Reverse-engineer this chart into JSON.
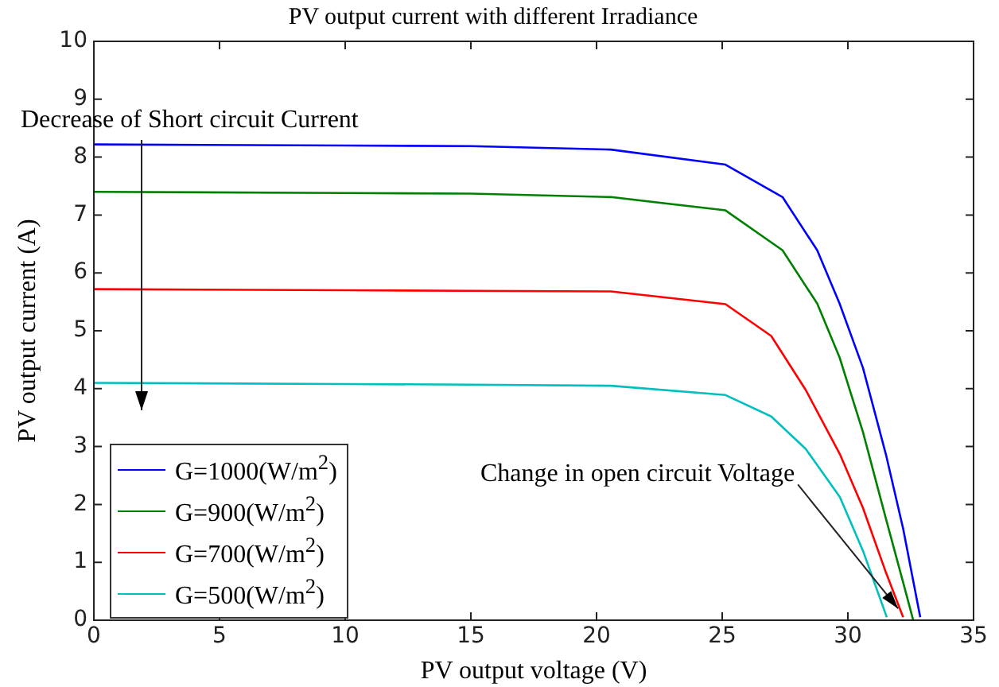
{
  "chart_data": {
    "type": "line",
    "title": "PV output current with different Irradiance",
    "xlabel": "PV output voltage (V)",
    "ylabel": "PV output current (A)",
    "xlim": [
      0,
      35
    ],
    "xticks": [
      0,
      5,
      10,
      15,
      20,
      25,
      30,
      35
    ],
    "ylim": [
      0,
      10
    ],
    "yticks": [
      0,
      1,
      2,
      3,
      4,
      5,
      6,
      7,
      8,
      9,
      10
    ],
    "grid": false,
    "legend": "bottom left",
    "marker": "none",
    "line_style": "solid",
    "series": [
      {
        "name": "G=1000(W/m$^{2}$)",
        "color": "#0000ff",
        "x": [
          0,
          10,
          15,
          20.57,
          25.13,
          27.4,
          28.78,
          29.67,
          30.6,
          31.51,
          32.2,
          32.88
        ],
        "values": [
          8.22,
          8.2,
          8.19,
          8.13,
          7.87,
          7.31,
          6.39,
          5.47,
          4.36,
          2.87,
          1.58,
          0.05
        ]
      },
      {
        "name": "G=900(W/m$^{2}$)",
        "color": "#008000",
        "x": [
          0,
          10,
          15,
          20.57,
          25.13,
          27.4,
          28.78,
          29.67,
          30.6,
          31.51,
          32.2,
          32.6
        ],
        "values": [
          7.4,
          7.38,
          7.37,
          7.31,
          7.08,
          6.39,
          5.47,
          4.54,
          3.25,
          1.76,
          0.65,
          0
        ]
      },
      {
        "name": "G=700(W/m$^{2}$)",
        "color": "#ff0000",
        "x": [
          0,
          10,
          15,
          20.57,
          25.13,
          26.95,
          28.32,
          29.68,
          30.6,
          31.51,
          32.2
        ],
        "values": [
          5.72,
          5.7,
          5.69,
          5.68,
          5.46,
          4.91,
          3.98,
          2.87,
          1.94,
          0.83,
          0.05
        ]
      },
      {
        "name": "G=500(W/m$^{2}$)",
        "color": "#00bfbf",
        "x": [
          0,
          10,
          15,
          20.57,
          25.13,
          26.95,
          28.32,
          29.68,
          30.6,
          31.55
        ],
        "values": [
          4.1,
          4.08,
          4.07,
          4.05,
          3.89,
          3.52,
          2.96,
          2.13,
          1.2,
          0.05
        ]
      }
    ],
    "annotations": [
      "Decrease of Short circuit Current",
      {
        "text": "Change in open circuit Voltage",
        "x": 32,
        "y": 0.2
      }
    ]
  }
}
